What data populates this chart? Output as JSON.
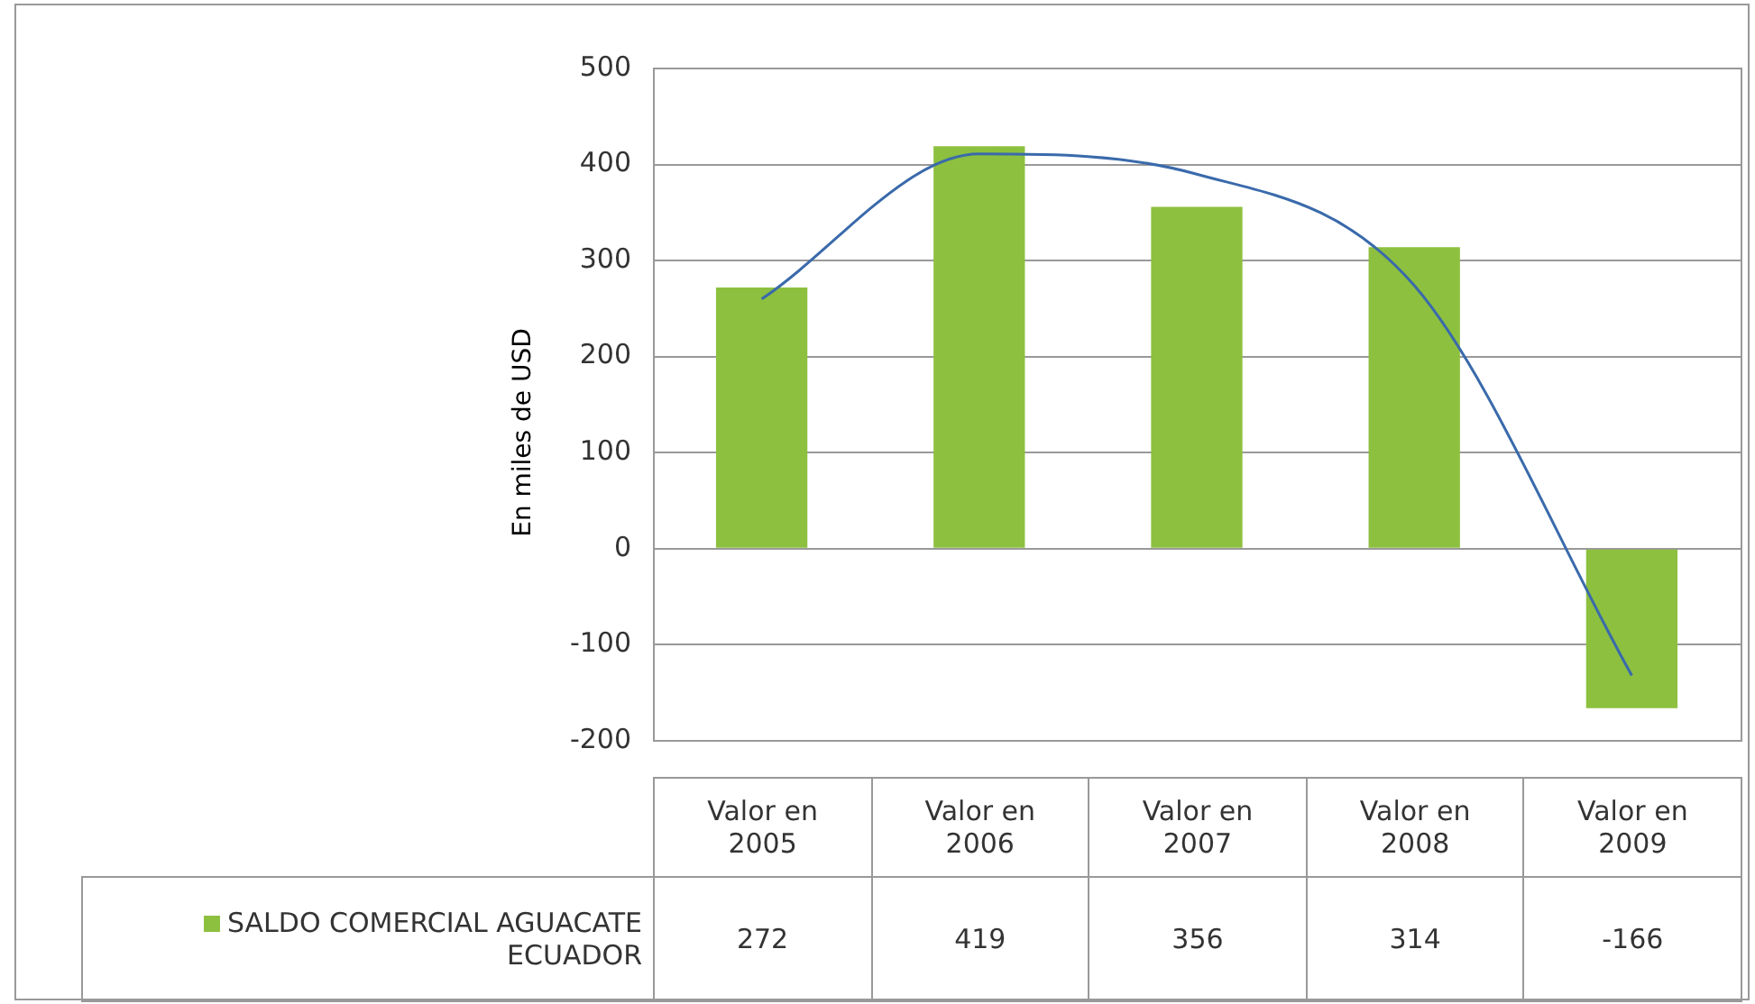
{
  "chart_data": {
    "type": "bar",
    "ylabel": "En miles de USD",
    "categories": [
      "Valor en 2005",
      "Valor en 2006",
      "Valor en 2007",
      "Valor en 2008",
      "Valor en 2009"
    ],
    "series": [
      {
        "name": "SALDO COMERCIAL AGUACATE ECUADOR",
        "color": "#8dc03f",
        "values": [
          272,
          419,
          356,
          314,
          -166
        ],
        "value_labels": [
          "272",
          "419",
          "356",
          "314",
          "-166"
        ]
      },
      {
        "type": "line",
        "color": "#3a6aab",
        "values": [
          260,
          411,
          390,
          274,
          -132
        ]
      }
    ],
    "ylim": [
      -200,
      500
    ],
    "yticks": [
      -200,
      -100,
      0,
      100,
      200,
      300,
      400,
      500
    ],
    "grid": "y",
    "legend": "bottom left"
  }
}
